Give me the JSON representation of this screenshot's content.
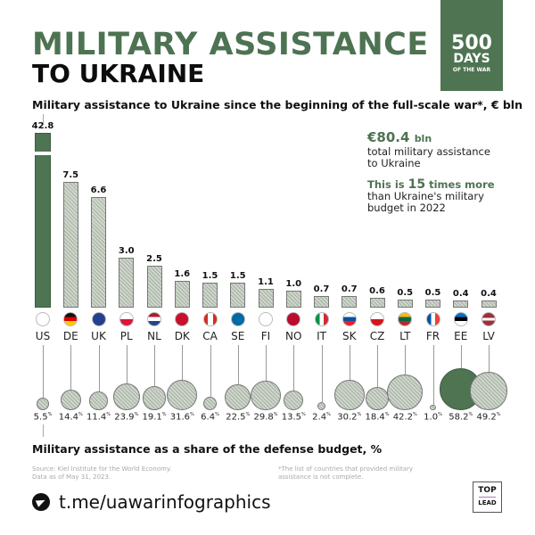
{
  "header": {
    "title_line1": "MILITARY ASSISTANCE",
    "title_line2": "TO UKRAINE",
    "badge": {
      "number": "500",
      "days": "DAYS",
      "suffix": "OF THE WAR",
      "color": "#4e7452"
    }
  },
  "chart1_subtitle": "Military assistance to Ukraine since the beginning of the full-scale war*, € bln",
  "info": {
    "total_value": "€80.4",
    "total_unit": "bln",
    "total_desc_1": "total military assistance",
    "total_desc_2": "to Ukraine",
    "compare_pre": "This is ",
    "compare_num": "15",
    "compare_post": " times more",
    "compare_desc_1": "than Ukraine's military",
    "compare_desc_2": "budget in 2022"
  },
  "chart2_subtitle": "Military assistance as a share of the defense budget, %",
  "footer": {
    "source_1": "Source: Kiel Institute for the World Economy.",
    "source_2": "Data as of May 31, 2023.",
    "note_1": "*The list of countries that provided military",
    "note_2": "assistance is not complete.",
    "telegram": "t.me/uawarinfographics",
    "logo_top": "TOP",
    "logo_bottom": "LEAD"
  },
  "chart_data": [
    {
      "type": "bar",
      "title": "Military assistance to Ukraine since the beginning of the full-scale war*, € bln",
      "categories": [
        "US",
        "DE",
        "UK",
        "PL",
        "NL",
        "DK",
        "CA",
        "SE",
        "FI",
        "NO",
        "IT",
        "SK",
        "CZ",
        "LT",
        "FR",
        "EE",
        "LV"
      ],
      "values": [
        42.8,
        7.5,
        6.6,
        3.0,
        2.5,
        1.6,
        1.5,
        1.5,
        1.1,
        1.0,
        0.7,
        0.7,
        0.6,
        0.5,
        0.5,
        0.4,
        0.4
      ],
      "labels": [
        "42.8",
        "7.5",
        "6.6",
        "3.0",
        "2.5",
        "1.6",
        "1.5",
        "1.5",
        "1.1",
        "1.0",
        "0.7",
        "0.7",
        "0.6",
        "0.5",
        "0.5",
        "0.4",
        "0.4"
      ],
      "highlight": "US",
      "axis_break": true,
      "unit": "€ bln"
    },
    {
      "type": "bubble",
      "title": "Military assistance as a share of the defense budget, %",
      "categories": [
        "US",
        "DE",
        "UK",
        "PL",
        "NL",
        "DK",
        "CA",
        "SE",
        "FI",
        "NO",
        "IT",
        "SK",
        "CZ",
        "LT",
        "FR",
        "EE",
        "LV"
      ],
      "values": [
        5.5,
        14.4,
        11.4,
        23.9,
        19.1,
        31.6,
        6.4,
        22.5,
        29.8,
        13.5,
        2.4,
        30.2,
        18.4,
        42.2,
        1.0,
        58.2,
        49.2
      ],
      "labels": [
        "5.5",
        "14.4",
        "11.4",
        "23.9",
        "19.1",
        "31.6",
        "6.4",
        "22.5",
        "29.8",
        "13.5",
        "2.4",
        "30.2",
        "18.4",
        "42.2",
        "1.0",
        "58.2",
        "49.2"
      ],
      "highlight": "EE",
      "unit": "%"
    }
  ],
  "colors": {
    "accent": "#4e7452",
    "bar_fill": "#cfd6cc"
  }
}
